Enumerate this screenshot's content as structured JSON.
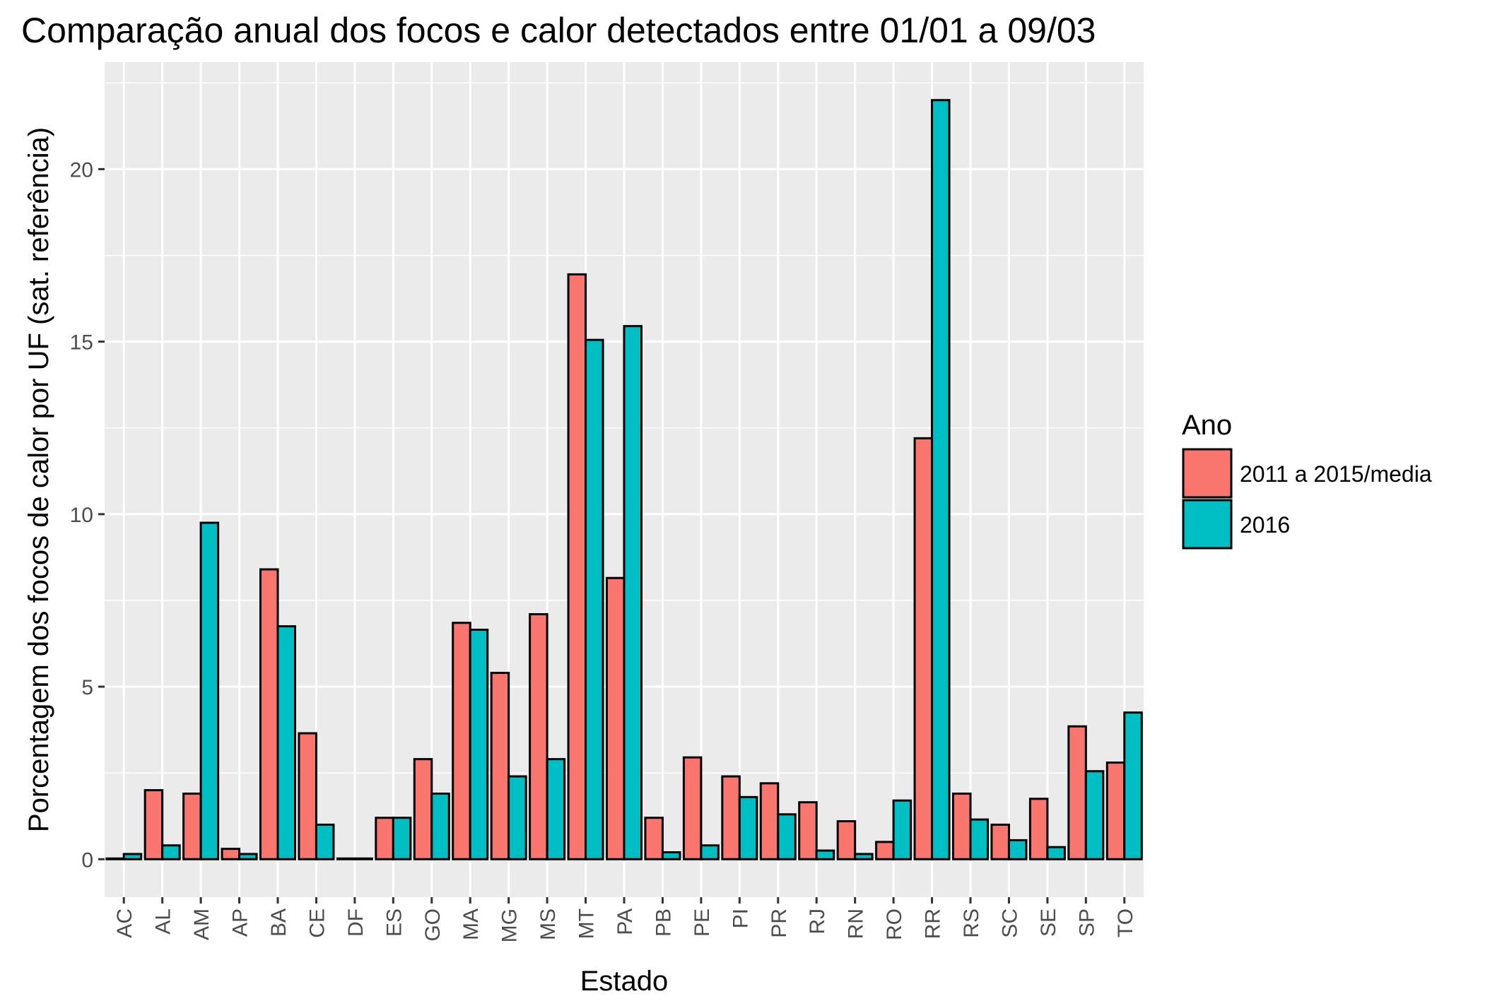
{
  "chart_data": {
    "type": "bar",
    "title": "Comparação anual dos focos e calor detectados entre 01/01 a 09/03",
    "xlabel": "Estado",
    "ylabel": "Porcentagem dos focos de calor por UF (sat. referência)",
    "categories": [
      "AC",
      "AL",
      "AM",
      "AP",
      "BA",
      "CE",
      "DF",
      "ES",
      "GO",
      "MA",
      "MG",
      "MS",
      "MT",
      "PA",
      "PB",
      "PE",
      "PI",
      "PR",
      "RJ",
      "RN",
      "RO",
      "RR",
      "RS",
      "SC",
      "SE",
      "SP",
      "TO"
    ],
    "series": [
      {
        "name": "2011 a 2015/media",
        "color": "#F8766D",
        "values": [
          0.02,
          2.0,
          1.9,
          0.3,
          8.4,
          3.65,
          0.02,
          1.2,
          2.9,
          6.85,
          5.4,
          7.1,
          16.95,
          8.15,
          1.2,
          2.95,
          2.4,
          2.2,
          1.65,
          1.1,
          0.5,
          12.2,
          1.9,
          1.0,
          1.75,
          3.85,
          2.8
        ]
      },
      {
        "name": "2016",
        "color": "#00BFC4",
        "values": [
          0.15,
          0.4,
          9.75,
          0.15,
          6.75,
          1.0,
          0.02,
          1.2,
          1.9,
          6.65,
          2.4,
          2.9,
          15.05,
          15.45,
          0.2,
          0.4,
          1.8,
          1.3,
          0.25,
          0.15,
          1.7,
          22.0,
          1.15,
          0.55,
          0.35,
          2.55,
          4.25
        ]
      }
    ],
    "yticks": [
      "0",
      "5",
      "10",
      "15",
      "20"
    ],
    "ylim": [
      -1.1,
      23.1
    ],
    "grid": true,
    "legend": {
      "title": "Ano",
      "position": "right"
    },
    "colors": {
      "panel_bg": "#EBEBEB",
      "grid": "#FFFFFF",
      "bar_outline": "#000000"
    }
  }
}
